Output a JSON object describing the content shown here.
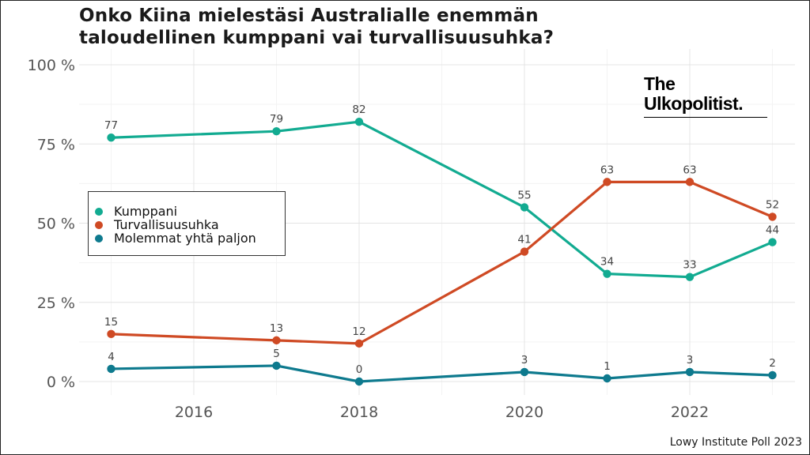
{
  "title_lines": [
    "Onko Kiina mielestäsi Australialle enemmän",
    "taloudellinen kumppani vai turvallisuusuhka?"
  ],
  "caption": "Lowy Institute Poll 2023",
  "logo": {
    "line1": "The",
    "line2": "Ulkopolitist."
  },
  "chart_data": {
    "type": "line",
    "title": "Onko Kiina mielestäsi Australialle enemmän taloudellinen kumppani vai turvallisuusuhka?",
    "xlabel": "",
    "ylabel": "",
    "xlim": [
      2014.6,
      2023.4
    ],
    "ylim": [
      0,
      100
    ],
    "x_ticks": [
      2016,
      2018,
      2020,
      2022
    ],
    "y_ticks": [
      0,
      25,
      50,
      75,
      100
    ],
    "y_tick_labels": [
      "0 %",
      "25 %",
      "50 %",
      "75 %",
      "100 %"
    ],
    "grid": true,
    "legend_position": "left-middle",
    "series": [
      {
        "name": "Kumppani",
        "color": "#12ab91",
        "x": [
          2015,
          2017,
          2018,
          2020,
          2021,
          2022,
          2023
        ],
        "values": [
          77,
          79,
          82,
          55,
          34,
          33,
          44
        ]
      },
      {
        "name": "Turvallisuusuhka",
        "color": "#cf4a24",
        "x": [
          2015,
          2017,
          2018,
          2020,
          2021,
          2022,
          2023
        ],
        "values": [
          15,
          13,
          12,
          41,
          63,
          63,
          52
        ]
      },
      {
        "name": "Molemmat yhtä paljon",
        "color": "#0e7a8e",
        "x": [
          2015,
          2017,
          2018,
          2020,
          2021,
          2022,
          2023
        ],
        "values": [
          4,
          5,
          0,
          3,
          1,
          3,
          2
        ]
      }
    ]
  }
}
